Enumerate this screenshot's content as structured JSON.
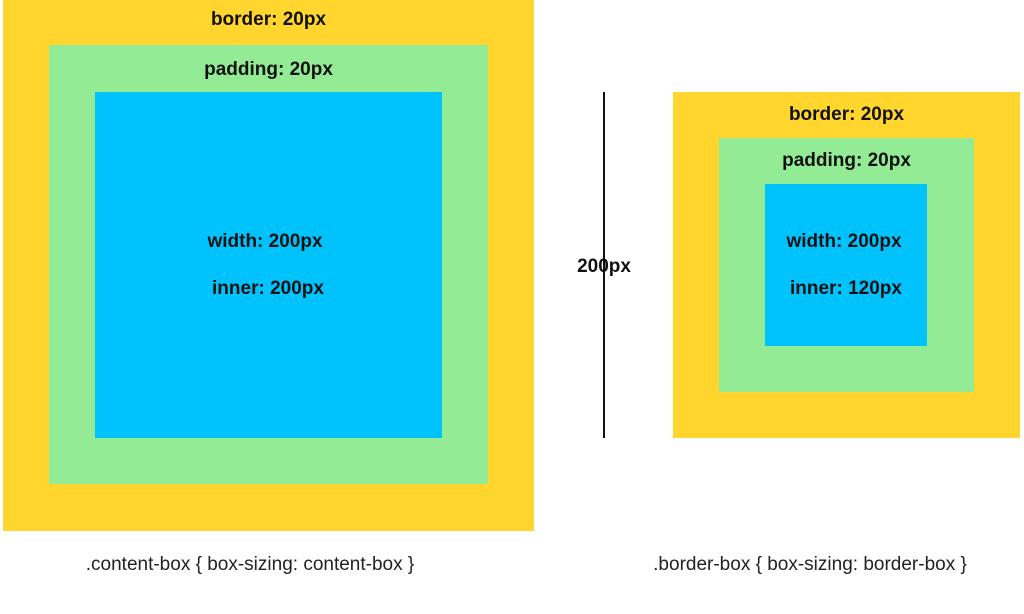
{
  "colors": {
    "border": "#ffd52e",
    "padding": "#93eb95",
    "content": "#00c3fe"
  },
  "content_box": {
    "border_label": "border: 20px",
    "padding_label": "padding: 20px",
    "width_label": "width: 200px",
    "inner_label": "inner: 200px",
    "caption": ".content-box { box-sizing: content-box }"
  },
  "measure": {
    "label": "200px"
  },
  "border_box": {
    "border_label": "border: 20px",
    "padding_label": "padding: 20px",
    "width_label": "width: 200px",
    "inner_label": "inner: 120px",
    "caption": ".border-box { box-sizing: border-box }"
  }
}
